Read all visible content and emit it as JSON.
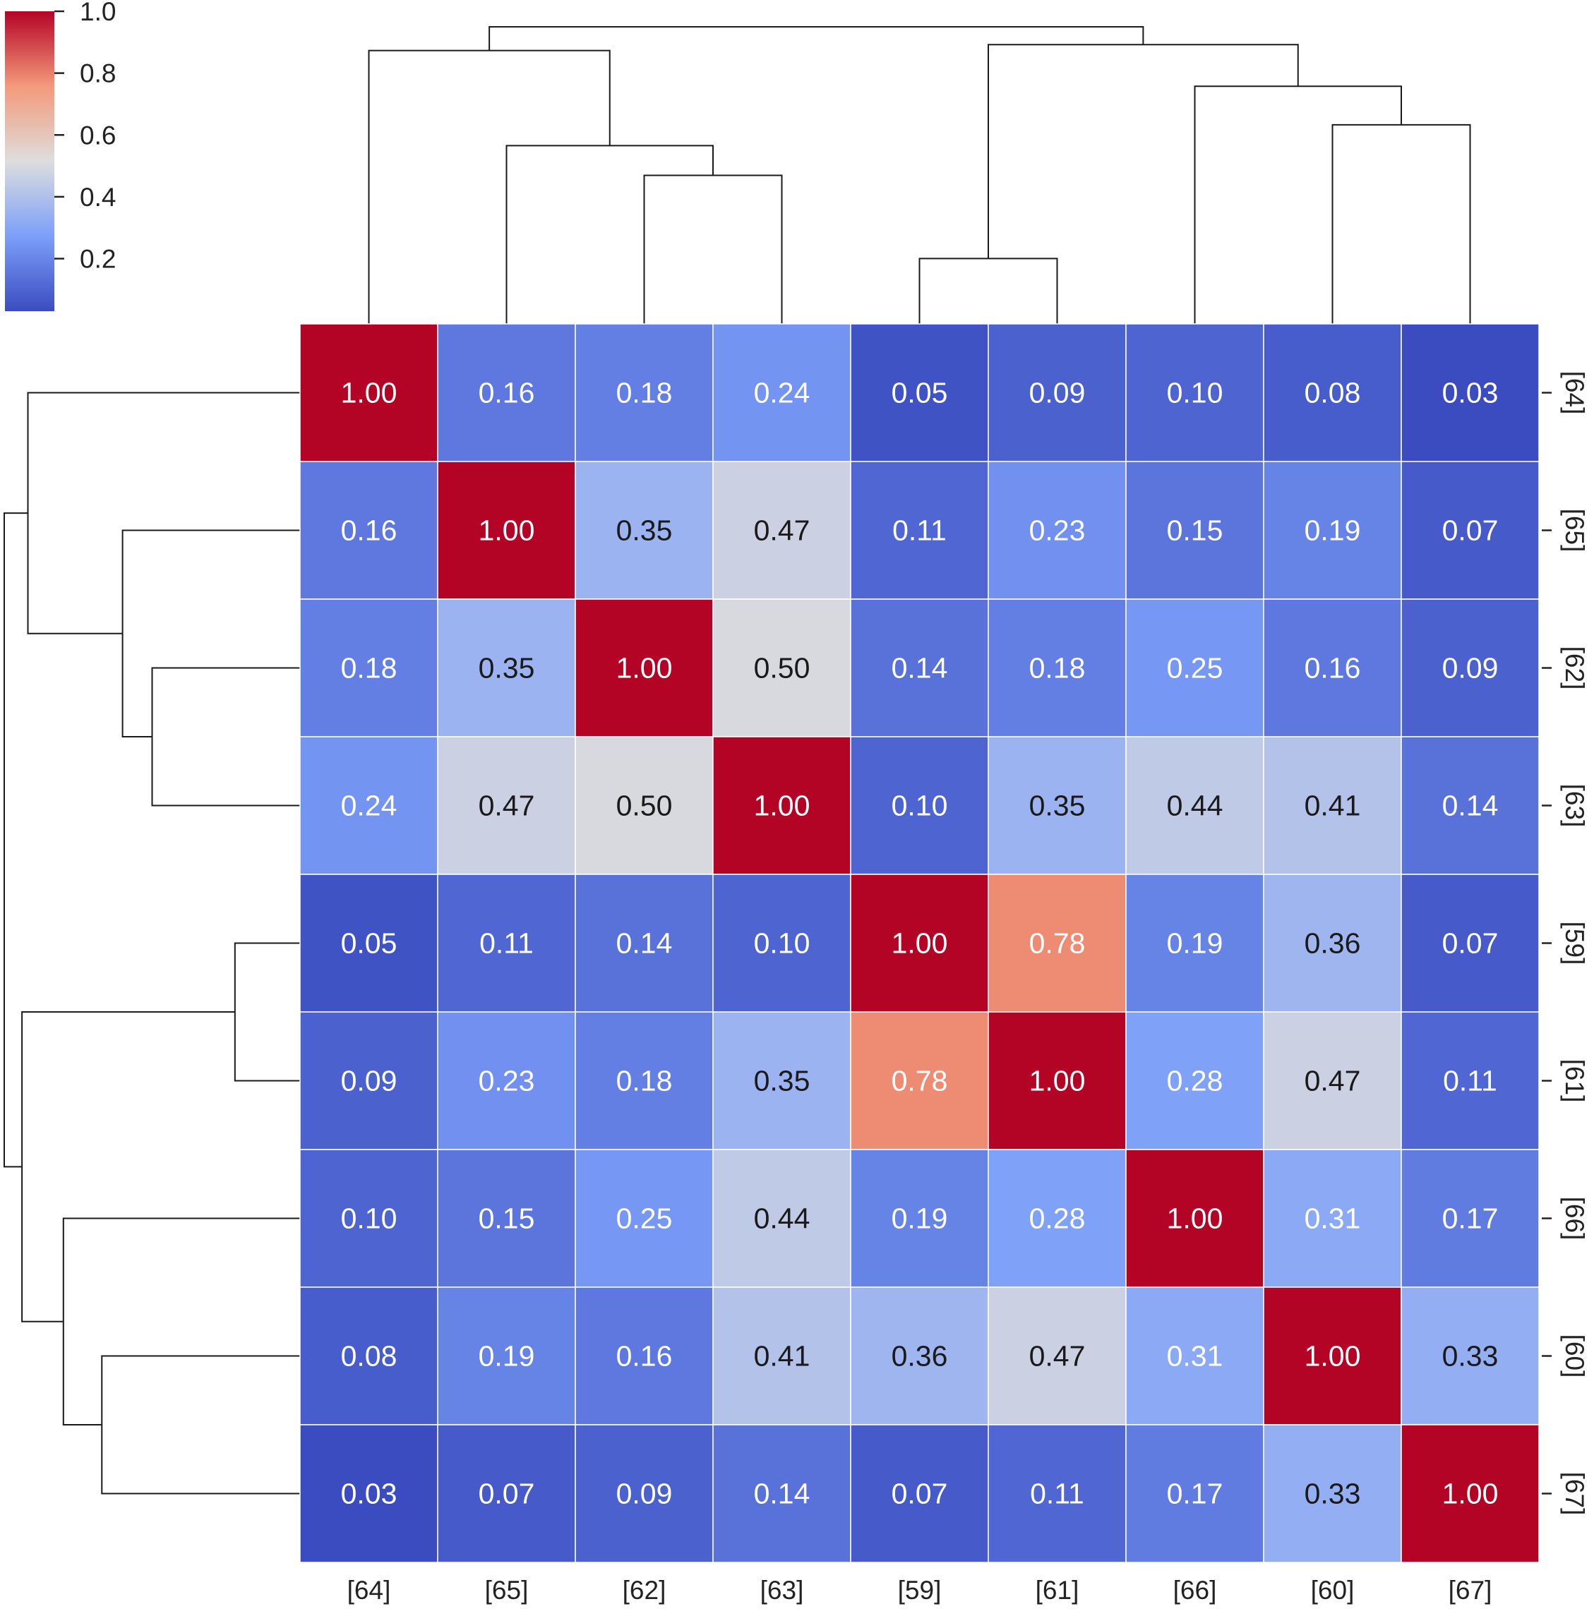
{
  "chart_data": {
    "type": "heatmap",
    "title": "",
    "xlabel": "",
    "ylabel": "",
    "labels": [
      "[64]",
      "[65]",
      "[62]",
      "[63]",
      "[59]",
      "[61]",
      "[66]",
      "[60]",
      "[67]"
    ],
    "values": [
      [
        1.0,
        0.16,
        0.18,
        0.24,
        0.05,
        0.09,
        0.1,
        0.08,
        0.03
      ],
      [
        0.16,
        1.0,
        0.35,
        0.47,
        0.11,
        0.23,
        0.15,
        0.19,
        0.07
      ],
      [
        0.18,
        0.35,
        1.0,
        0.5,
        0.14,
        0.18,
        0.25,
        0.16,
        0.09
      ],
      [
        0.24,
        0.47,
        0.5,
        1.0,
        0.1,
        0.35,
        0.44,
        0.41,
        0.14
      ],
      [
        0.05,
        0.11,
        0.14,
        0.1,
        1.0,
        0.78,
        0.19,
        0.36,
        0.07
      ],
      [
        0.09,
        0.23,
        0.18,
        0.35,
        0.78,
        1.0,
        0.28,
        0.47,
        0.11
      ],
      [
        0.1,
        0.15,
        0.25,
        0.44,
        0.19,
        0.28,
        1.0,
        0.31,
        0.17
      ],
      [
        0.08,
        0.19,
        0.16,
        0.41,
        0.36,
        0.47,
        0.31,
        1.0,
        0.33
      ],
      [
        0.03,
        0.07,
        0.09,
        0.14,
        0.07,
        0.11,
        0.17,
        0.33,
        1.0
      ]
    ],
    "value_format": "2 decimals",
    "colormap": "coolwarm",
    "color_range": [
      0.03,
      1.0
    ],
    "colorbar": {
      "ticks": [
        "0.2",
        "0.4",
        "0.6",
        "0.8",
        "1.0"
      ],
      "tick_values": [
        0.2,
        0.4,
        0.6,
        0.8,
        1.0
      ],
      "placement": "top-left"
    },
    "dendrogram": {
      "linkage_order_note": "",
      "merges": [
        {
          "a": 4,
          "b": 5,
          "height": 0.22
        },
        {
          "a": 2,
          "b": 3,
          "height": 0.5
        },
        {
          "a": 1,
          "b": "m1",
          "height": 0.6
        },
        {
          "a": 7,
          "b": 8,
          "height": 0.67
        },
        {
          "a": 6,
          "b": "m3",
          "height": 0.8
        },
        {
          "a": "m0",
          "b": "m4",
          "height": 0.94
        },
        {
          "a": 0,
          "b": "m2",
          "height": 0.92
        },
        {
          "a": "m6",
          "b": "m5",
          "height": 1.0
        }
      ],
      "placement": [
        "top",
        "left"
      ]
    },
    "grid": false
  }
}
